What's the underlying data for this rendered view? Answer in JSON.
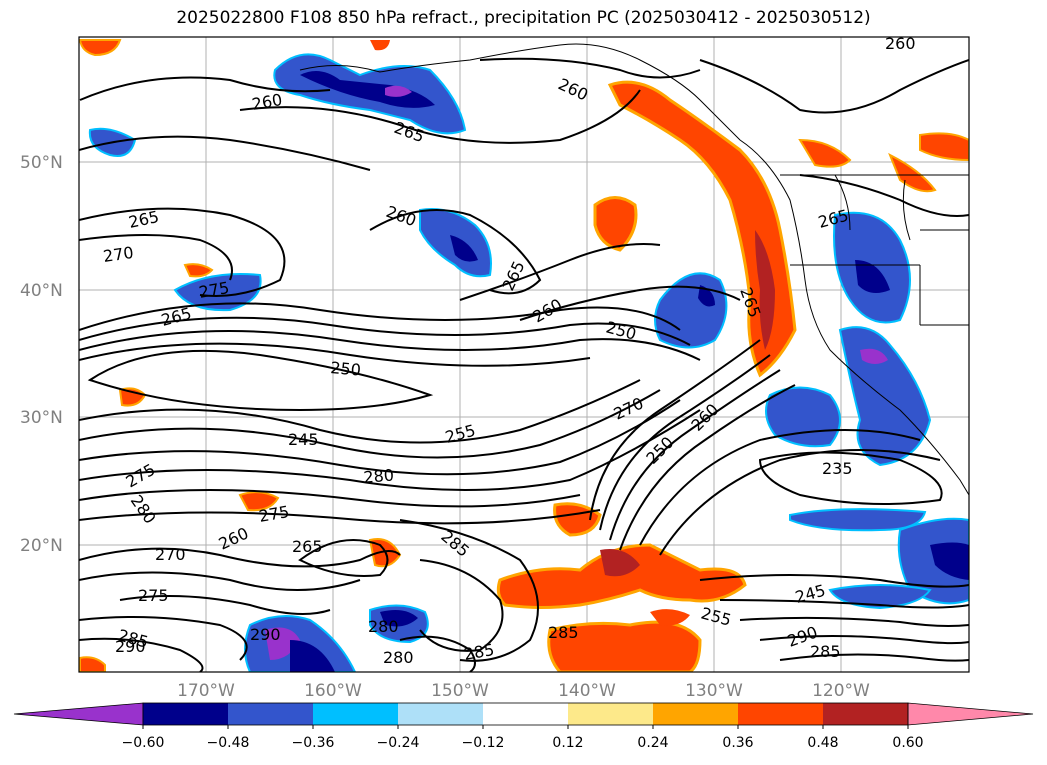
{
  "title": "2025022800 F108 850 hPa refract., precipitation PC (2025030412 - 2025030512)",
  "lat_labels": [
    "50°N",
    "40°N",
    "30°N",
    "20°N"
  ],
  "lon_labels": [
    "170°W",
    "160°W",
    "150°W",
    "140°W",
    "130°W",
    "120°W"
  ],
  "contour_labels": [
    "260",
    "260",
    "265",
    "265",
    "270",
    "275",
    "265",
    "260",
    "265",
    "260",
    "250",
    "250",
    "265",
    "265",
    "270",
    "260",
    "250",
    "245",
    "255",
    "235",
    "280",
    "275",
    "280",
    "275",
    "260",
    "265",
    "285",
    "270",
    "275",
    "285",
    "290",
    "290",
    "280",
    "285",
    "280",
    "285",
    "245",
    "255",
    "290",
    "285",
    "260"
  ],
  "colorbar": {
    "ticks": [
      "−0.60",
      "−0.48",
      "−0.36",
      "−0.24",
      "−0.12",
      "0.12",
      "0.24",
      "0.36",
      "0.48",
      "0.60"
    ],
    "colors": [
      "#9932cc",
      "#00008b",
      "#3355cc",
      "#00bfff",
      "#aee0f8",
      "#ffffff",
      "#fde98a",
      "#ffa500",
      "#ff4500",
      "#b22222",
      "#ff88aa"
    ]
  }
}
